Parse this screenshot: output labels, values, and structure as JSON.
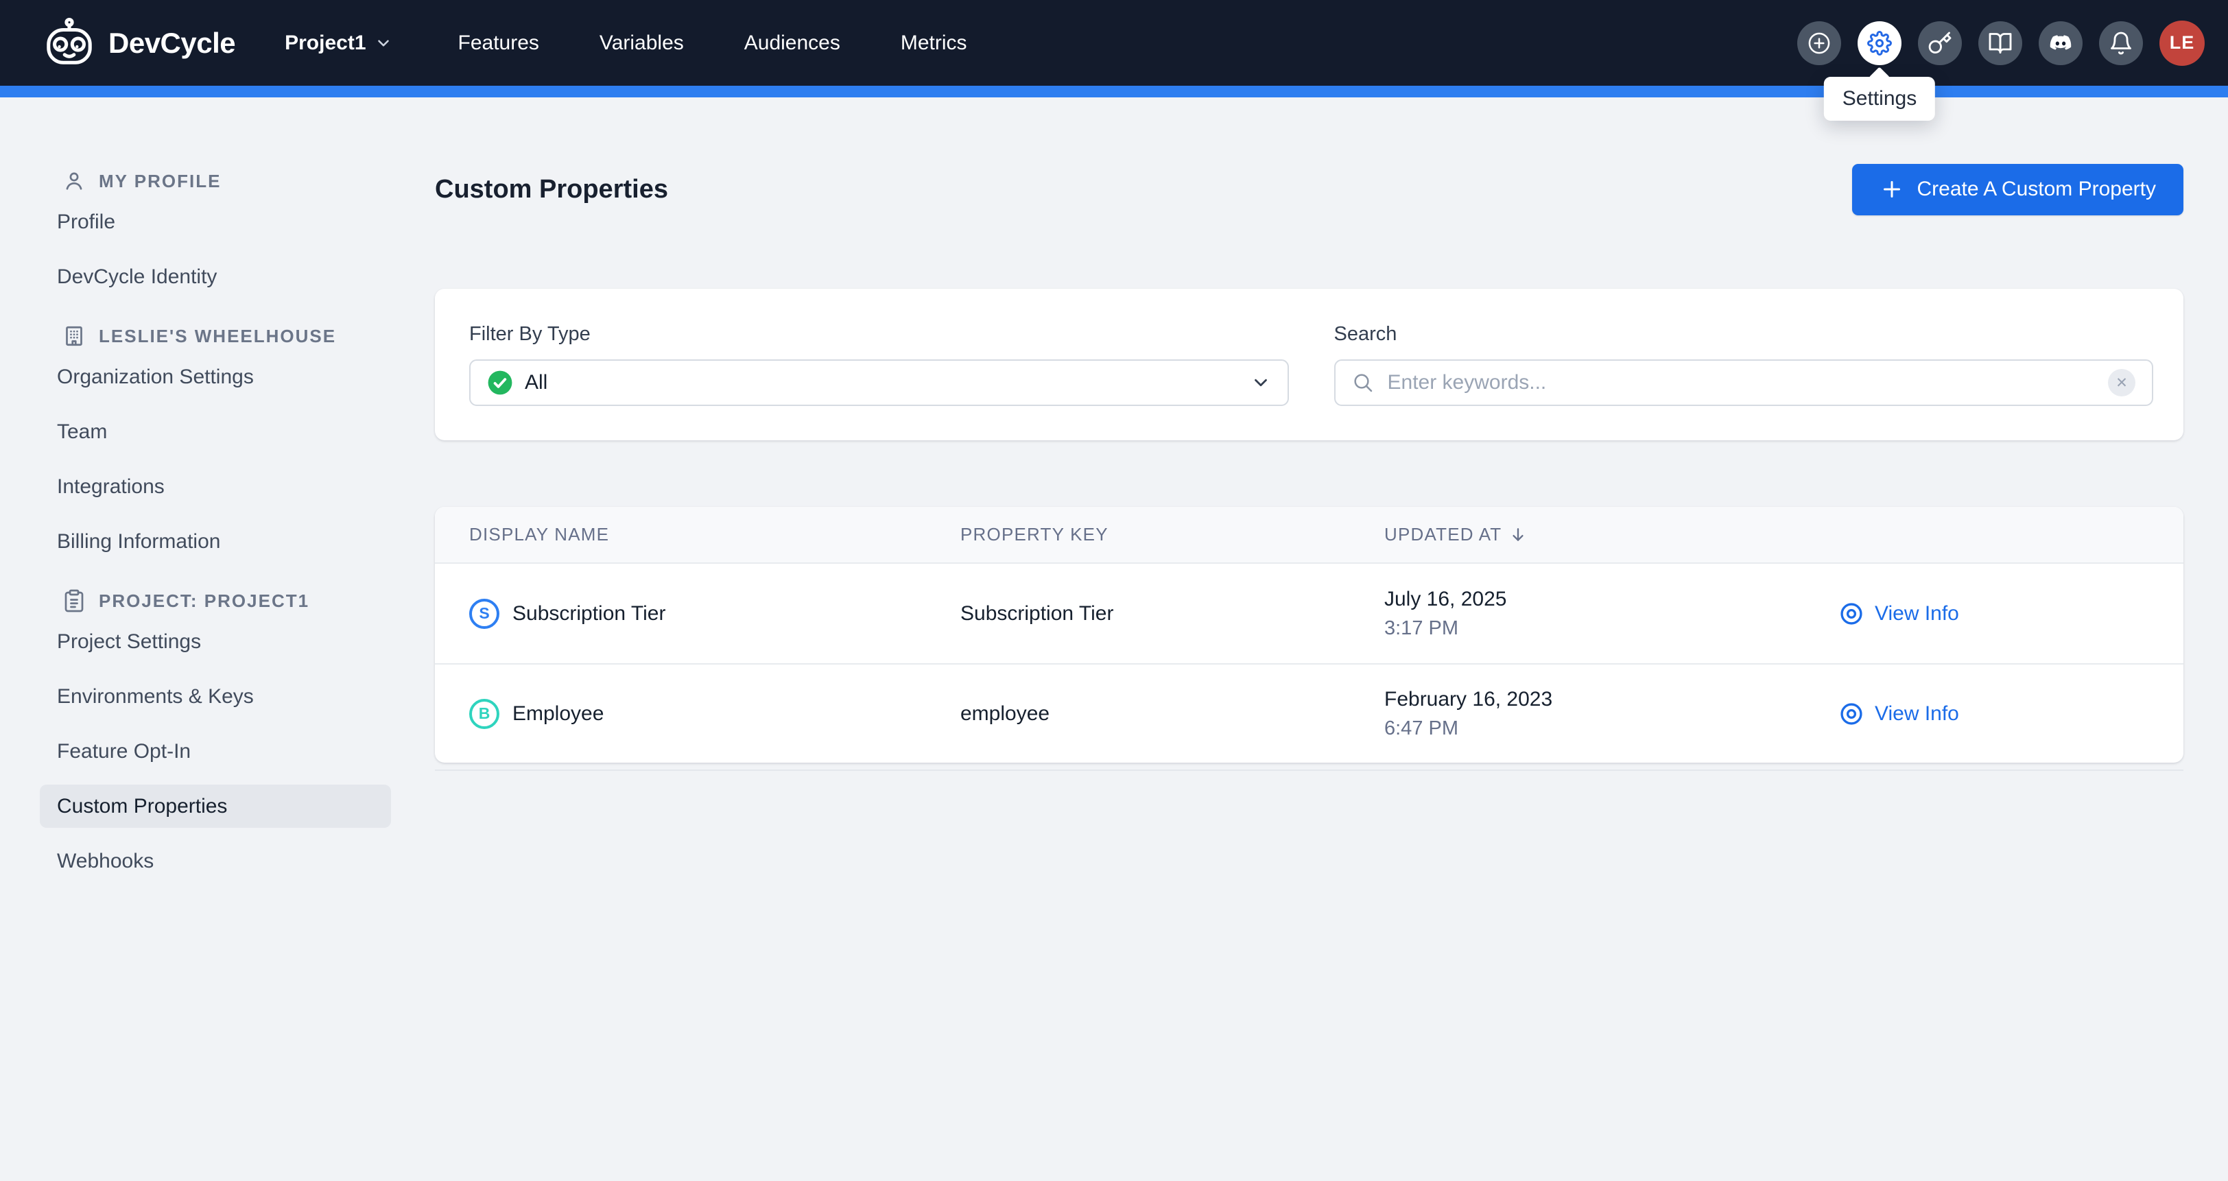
{
  "topnav": {
    "brand": "DevCycle",
    "project": "Project1",
    "links": [
      "Features",
      "Variables",
      "Audiences",
      "Metrics"
    ],
    "icon_names": [
      "plus-circle-icon",
      "settings-gear-icon",
      "api-key-icon",
      "docs-book-icon",
      "discord-icon",
      "notifications-bell-icon"
    ],
    "active_icon": "settings-gear-icon",
    "avatar_initials": "LE",
    "tooltip": "Settings"
  },
  "sidebar": {
    "sections": [
      {
        "icon": "user-icon",
        "header": "MY PROFILE",
        "items": [
          {
            "label": "Profile",
            "selected": false
          },
          {
            "label": "DevCycle Identity",
            "selected": false
          }
        ]
      },
      {
        "icon": "building-icon",
        "header": "LESLIE'S WHEELHOUSE",
        "items": [
          {
            "label": "Organization Settings",
            "selected": false
          },
          {
            "label": "Team",
            "selected": false
          },
          {
            "label": "Integrations",
            "selected": false
          },
          {
            "label": "Billing Information",
            "selected": false
          }
        ]
      },
      {
        "icon": "clipboard-icon",
        "header": "PROJECT: PROJECT1",
        "items": [
          {
            "label": "Project Settings",
            "selected": false
          },
          {
            "label": "Environments & Keys",
            "selected": false
          },
          {
            "label": "Feature Opt-In",
            "selected": false
          },
          {
            "label": "Custom Properties",
            "selected": true
          },
          {
            "label": "Webhooks",
            "selected": false
          }
        ]
      }
    ]
  },
  "main": {
    "title": "Custom Properties",
    "create_button": "Create A Custom Property",
    "filter_label": "Filter By Type",
    "filter_value": "All",
    "search_label": "Search",
    "search_placeholder": "Enter keywords...",
    "table": {
      "columns": [
        "DISPLAY NAME",
        "PROPERTY KEY",
        "UPDATED AT"
      ],
      "sorted_column": "UPDATED AT",
      "rows": [
        {
          "badge_letter": "S",
          "badge_color": "#2e7ff2",
          "display_name": "Subscription Tier",
          "property_key": "Subscription Tier",
          "updated_date": "July 16, 2025",
          "updated_time": "3:17 PM",
          "action_label": "View Info"
        },
        {
          "badge_letter": "B",
          "badge_color": "#2fd4be",
          "display_name": "Employee",
          "property_key": "employee",
          "updated_date": "February 16, 2023",
          "updated_time": "6:47 PM",
          "action_label": "View Info"
        }
      ]
    }
  },
  "colors": {
    "navbar": "#131b2c",
    "stripe_blue": "#2e7ef0",
    "accent_blue": "#1b6ce8",
    "success_green": "#23b75f",
    "avatar_red": "#c2443c"
  }
}
